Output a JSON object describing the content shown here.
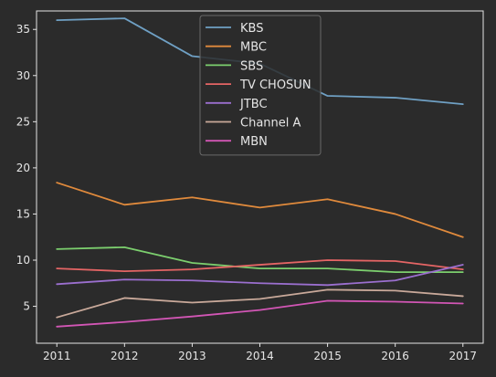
{
  "chart_data": {
    "type": "line",
    "x": [
      2011,
      2012,
      2013,
      2014,
      2015,
      2016,
      2017
    ],
    "xlim": [
      2010.7,
      2017.3
    ],
    "ylim": [
      1.0,
      37.0
    ],
    "yticks": [
      5,
      10,
      15,
      20,
      25,
      30,
      35
    ],
    "grid": false,
    "legend_position": "top-center",
    "background": "#2b2b2b",
    "axes_color": "#e6e6e6",
    "series": [
      {
        "name": "KBS",
        "color": "#6fa0c4",
        "values": [
          36.0,
          36.2,
          32.1,
          31.3,
          27.8,
          27.6,
          26.9
        ]
      },
      {
        "name": "MBC",
        "color": "#e08a3c",
        "values": [
          18.4,
          16.0,
          16.8,
          15.7,
          16.6,
          15.0,
          12.5
        ]
      },
      {
        "name": "SBS",
        "color": "#7ccf6e",
        "values": [
          11.2,
          11.4,
          9.7,
          9.1,
          9.1,
          8.7,
          8.7
        ]
      },
      {
        "name": "TV CHOSUN",
        "color": "#e56565",
        "values": [
          9.1,
          8.8,
          9.0,
          9.5,
          10.0,
          9.9,
          9.0
        ]
      },
      {
        "name": "JTBC",
        "color": "#9b6fcf",
        "values": [
          7.4,
          7.9,
          7.8,
          7.5,
          7.3,
          7.8,
          9.5
        ]
      },
      {
        "name": "Channel A",
        "color": "#c9a99a",
        "values": [
          3.8,
          5.9,
          5.4,
          5.8,
          6.8,
          6.7,
          6.1
        ]
      },
      {
        "name": "MBN",
        "color": "#d256b5",
        "values": [
          2.8,
          3.3,
          3.9,
          4.6,
          5.6,
          5.5,
          5.3
        ]
      }
    ]
  }
}
